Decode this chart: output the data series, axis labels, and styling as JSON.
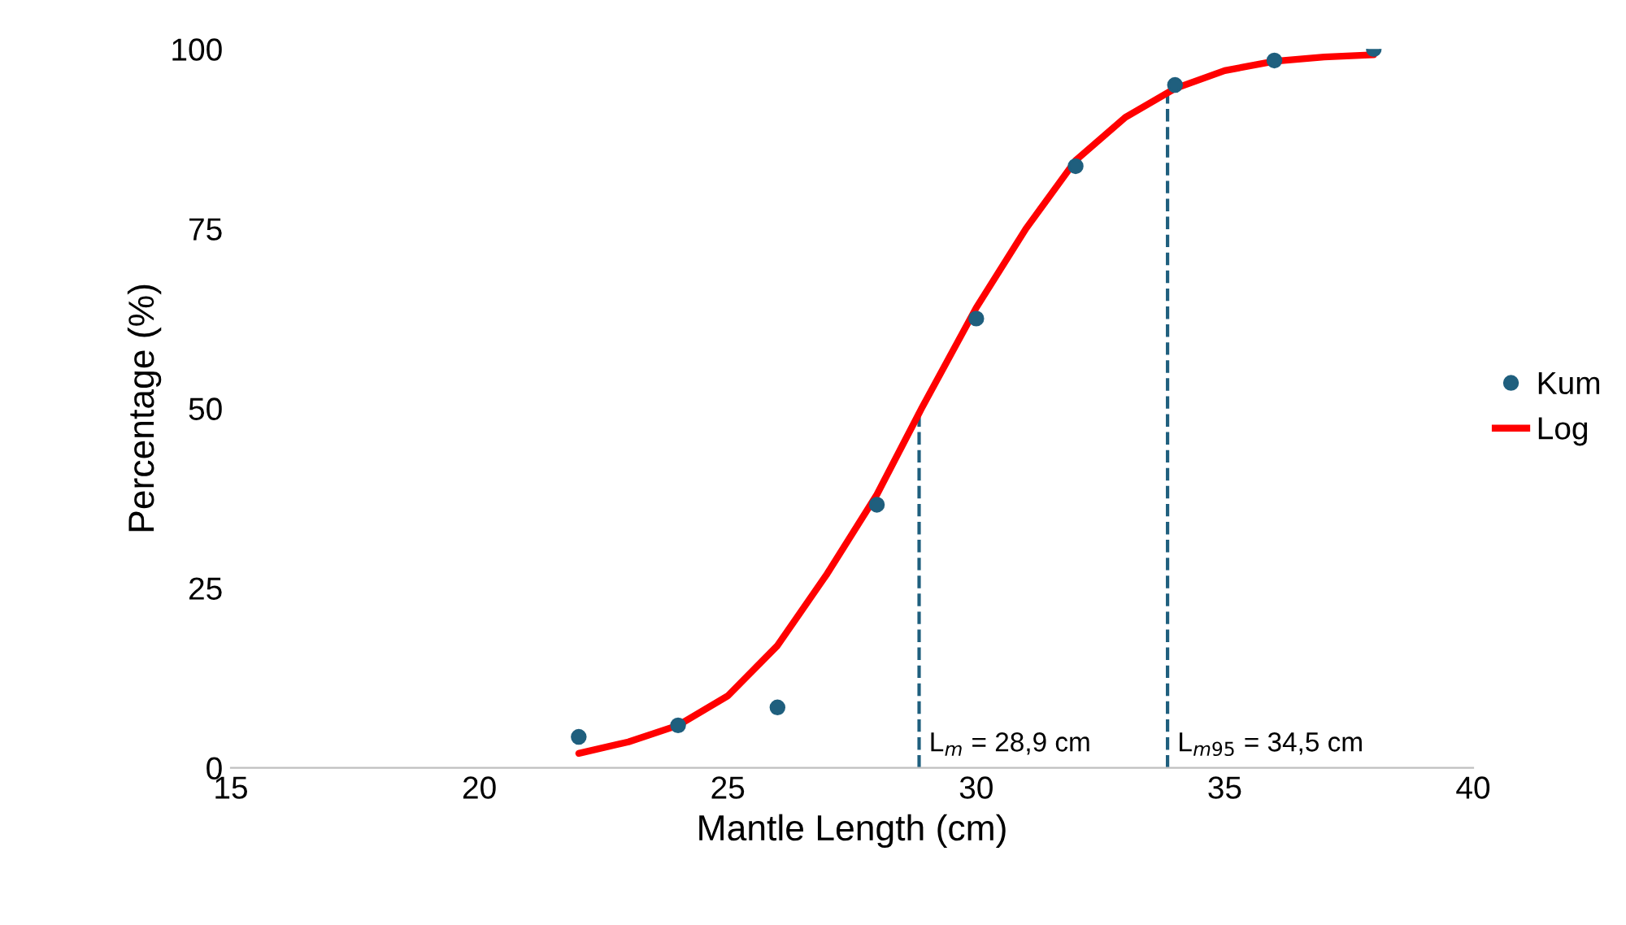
{
  "chart_data": {
    "type": "scatter",
    "xlabel": "Mantle Length (cm)",
    "ylabel": "Percentage (%)",
    "xlim": [
      15,
      40
    ],
    "ylim": [
      0,
      100
    ],
    "xticks": [
      15,
      20,
      25,
      30,
      35,
      40
    ],
    "yticks": [
      0,
      25,
      50,
      75,
      100
    ],
    "grid": false,
    "legend": "right",
    "series": [
      {
        "name": "Kum",
        "marker": "circle",
        "color": "#1f5f7e",
        "x": [
          22,
          24,
          26,
          28,
          30,
          32,
          34,
          36,
          38
        ],
        "values": [
          4.3,
          5.9,
          8.4,
          36.6,
          62.5,
          83.7,
          95,
          98.4,
          100
        ]
      },
      {
        "name": "Log",
        "type": "line",
        "marker": "none",
        "line_style": "solid",
        "color": "#ff0000",
        "x": [
          22,
          23,
          24,
          25,
          26,
          27,
          28,
          28.9,
          30,
          31,
          32,
          33,
          34,
          35,
          36,
          37,
          38
        ],
        "values": [
          2,
          3.6,
          5.9,
          10,
          17,
          27,
          38,
          50,
          64,
          75,
          84.5,
          90.5,
          94.5,
          97,
          98.3,
          98.9,
          99.2
        ]
      }
    ],
    "ref_lines": [
      {
        "axis": "x",
        "value": 28.85,
        "color": "#1f5f7e",
        "line_style": "dashed"
      },
      {
        "axis": "x",
        "value": 33.85,
        "color": "#1f5f7e",
        "line_style": "dashed"
      }
    ],
    "annotations": [
      {
        "text": "L$_{m}$ = 28,9 cm",
        "x": 28.85,
        "y": 0
      },
      {
        "text": "L$_{m95}$ = 34,5 cm",
        "x": 33.85,
        "y": 0
      }
    ]
  }
}
